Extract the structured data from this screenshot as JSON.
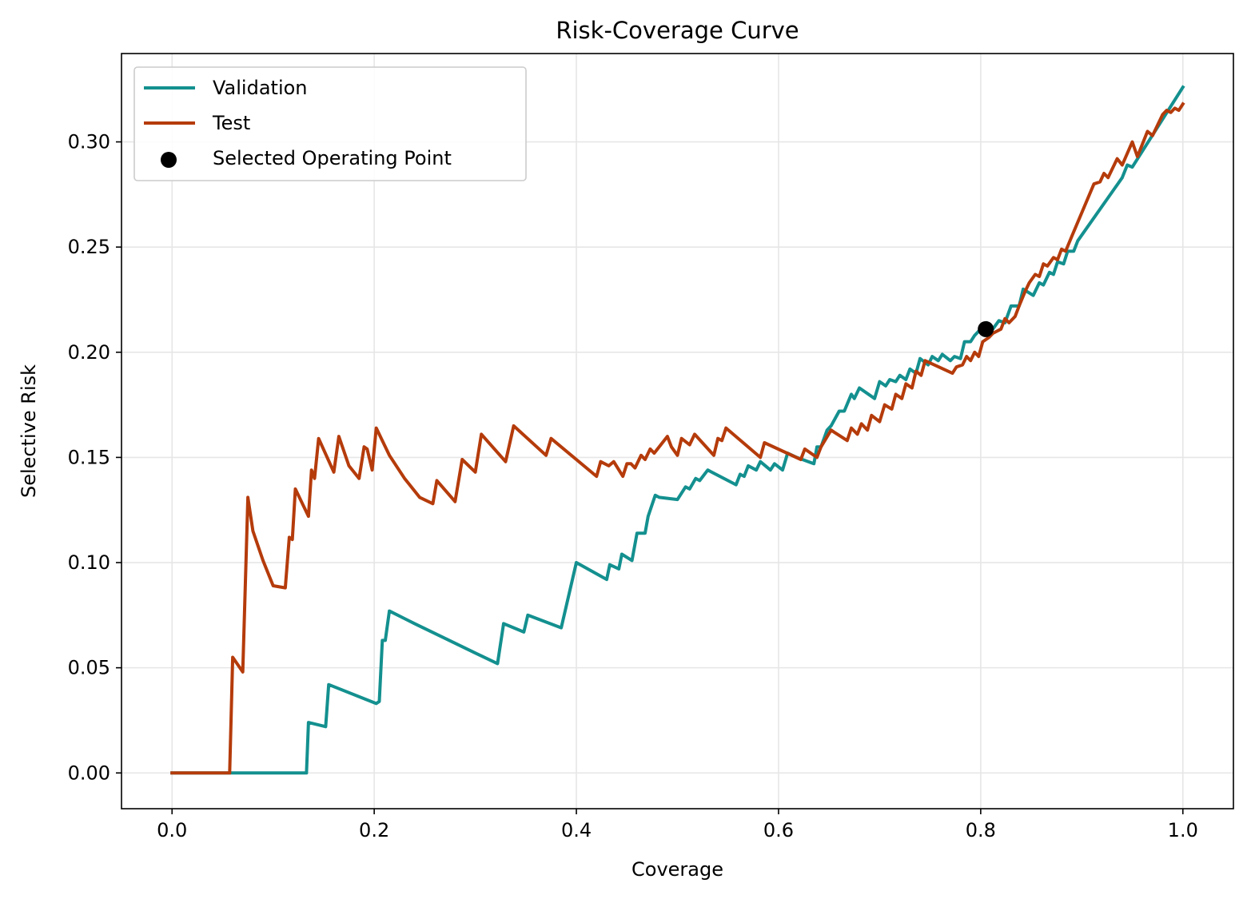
{
  "chart_data": {
    "type": "line",
    "title": "Risk-Coverage Curve",
    "xlabel": "Coverage",
    "ylabel": "Selective Risk",
    "xlim": [
      -0.05,
      1.05
    ],
    "ylim": [
      -0.017,
      0.342
    ],
    "xticks": [
      0.0,
      0.2,
      0.4,
      0.6,
      0.8,
      1.0
    ],
    "xtick_labels": [
      "0.0",
      "0.2",
      "0.4",
      "0.6",
      "0.8",
      "1.0"
    ],
    "yticks": [
      0.0,
      0.05,
      0.1,
      0.15,
      0.2,
      0.25,
      0.3
    ],
    "ytick_labels": [
      "0.00",
      "0.05",
      "0.10",
      "0.15",
      "0.20",
      "0.25",
      "0.30"
    ],
    "grid": true,
    "legend_position": "top-left",
    "series": [
      {
        "name": "Validation",
        "color": "#13908f",
        "x": [
          0.0,
          0.133,
          0.135,
          0.152,
          0.155,
          0.202,
          0.205,
          0.208,
          0.211,
          0.215,
          0.24,
          0.27,
          0.3,
          0.322,
          0.328,
          0.348,
          0.352,
          0.385,
          0.4,
          0.43,
          0.433,
          0.442,
          0.445,
          0.455,
          0.46,
          0.468,
          0.471,
          0.478,
          0.482,
          0.5,
          0.508,
          0.512,
          0.518,
          0.522,
          0.53,
          0.558,
          0.562,
          0.566,
          0.57,
          0.578,
          0.582,
          0.592,
          0.596,
          0.604,
          0.609,
          0.618,
          0.635,
          0.638,
          0.642,
          0.648,
          0.652,
          0.66,
          0.665,
          0.672,
          0.675,
          0.68,
          0.695,
          0.7,
          0.706,
          0.71,
          0.716,
          0.72,
          0.726,
          0.73,
          0.736,
          0.74,
          0.748,
          0.752,
          0.758,
          0.762,
          0.77,
          0.774,
          0.78,
          0.784,
          0.79,
          0.794,
          0.8,
          0.806,
          0.812,
          0.818,
          0.824,
          0.83,
          0.838,
          0.842,
          0.852,
          0.858,
          0.862,
          0.868,
          0.872,
          0.876,
          0.882,
          0.886,
          0.892,
          0.896,
          0.94,
          0.945,
          0.95,
          1.0
        ],
        "y": [
          0.0,
          0.0,
          0.024,
          0.022,
          0.042,
          0.033,
          0.034,
          0.063,
          0.063,
          0.077,
          0.071,
          0.064,
          0.057,
          0.052,
          0.071,
          0.067,
          0.075,
          0.069,
          0.1,
          0.092,
          0.099,
          0.097,
          0.104,
          0.101,
          0.114,
          0.114,
          0.122,
          0.132,
          0.131,
          0.13,
          0.136,
          0.135,
          0.14,
          0.139,
          0.144,
          0.137,
          0.142,
          0.141,
          0.146,
          0.144,
          0.148,
          0.144,
          0.147,
          0.144,
          0.152,
          0.15,
          0.147,
          0.155,
          0.155,
          0.163,
          0.165,
          0.172,
          0.172,
          0.18,
          0.178,
          0.183,
          0.178,
          0.186,
          0.184,
          0.187,
          0.186,
          0.189,
          0.187,
          0.192,
          0.19,
          0.197,
          0.194,
          0.198,
          0.196,
          0.199,
          0.196,
          0.198,
          0.197,
          0.205,
          0.205,
          0.208,
          0.211,
          0.214,
          0.211,
          0.215,
          0.214,
          0.222,
          0.222,
          0.23,
          0.227,
          0.233,
          0.232,
          0.238,
          0.237,
          0.243,
          0.242,
          0.248,
          0.248,
          0.253,
          0.283,
          0.289,
          0.288,
          0.326
        ]
      },
      {
        "name": "Test",
        "color": "#b53b0b",
        "x": [
          0.0,
          0.057,
          0.06,
          0.07,
          0.075,
          0.08,
          0.09,
          0.1,
          0.112,
          0.116,
          0.119,
          0.122,
          0.135,
          0.138,
          0.141,
          0.145,
          0.16,
          0.165,
          0.175,
          0.185,
          0.19,
          0.193,
          0.198,
          0.202,
          0.215,
          0.23,
          0.245,
          0.258,
          0.262,
          0.28,
          0.287,
          0.3,
          0.306,
          0.33,
          0.338,
          0.37,
          0.375,
          0.42,
          0.424,
          0.432,
          0.437,
          0.446,
          0.45,
          0.454,
          0.458,
          0.464,
          0.468,
          0.473,
          0.477,
          0.49,
          0.494,
          0.5,
          0.504,
          0.512,
          0.517,
          0.536,
          0.54,
          0.544,
          0.548,
          0.582,
          0.586,
          0.622,
          0.626,
          0.638,
          0.642,
          0.652,
          0.655,
          0.668,
          0.672,
          0.678,
          0.682,
          0.688,
          0.692,
          0.7,
          0.705,
          0.712,
          0.716,
          0.722,
          0.726,
          0.732,
          0.736,
          0.741,
          0.745,
          0.772,
          0.776,
          0.782,
          0.786,
          0.79,
          0.794,
          0.798,
          0.802,
          0.808,
          0.812,
          0.82,
          0.824,
          0.828,
          0.834,
          0.838,
          0.844,
          0.848,
          0.854,
          0.858,
          0.862,
          0.866,
          0.872,
          0.876,
          0.88,
          0.884,
          0.89,
          0.912,
          0.918,
          0.922,
          0.926,
          0.935,
          0.94,
          0.95,
          0.955,
          0.965,
          0.97,
          0.98,
          0.984,
          0.988,
          0.992,
          0.996,
          1.0
        ],
        "y": [
          0.0,
          0.0,
          0.055,
          0.048,
          0.131,
          0.115,
          0.101,
          0.089,
          0.088,
          0.112,
          0.111,
          0.135,
          0.122,
          0.144,
          0.14,
          0.159,
          0.143,
          0.16,
          0.146,
          0.14,
          0.155,
          0.154,
          0.144,
          0.164,
          0.151,
          0.14,
          0.131,
          0.128,
          0.139,
          0.129,
          0.149,
          0.143,
          0.161,
          0.148,
          0.165,
          0.151,
          0.159,
          0.141,
          0.148,
          0.146,
          0.148,
          0.141,
          0.147,
          0.147,
          0.145,
          0.151,
          0.149,
          0.154,
          0.152,
          0.16,
          0.155,
          0.151,
          0.159,
          0.156,
          0.161,
          0.151,
          0.159,
          0.158,
          0.164,
          0.15,
          0.157,
          0.149,
          0.154,
          0.15,
          0.155,
          0.163,
          0.162,
          0.158,
          0.164,
          0.161,
          0.166,
          0.163,
          0.17,
          0.167,
          0.175,
          0.173,
          0.18,
          0.178,
          0.185,
          0.183,
          0.191,
          0.189,
          0.196,
          0.19,
          0.193,
          0.194,
          0.198,
          0.196,
          0.2,
          0.198,
          0.205,
          0.207,
          0.209,
          0.211,
          0.216,
          0.214,
          0.217,
          0.222,
          0.229,
          0.233,
          0.237,
          0.236,
          0.242,
          0.241,
          0.245,
          0.244,
          0.249,
          0.248,
          0.255,
          0.28,
          0.281,
          0.285,
          0.283,
          0.292,
          0.289,
          0.3,
          0.293,
          0.305,
          0.303,
          0.313,
          0.315,
          0.314,
          0.316,
          0.315,
          0.318
        ]
      }
    ],
    "points": [
      {
        "name": "Selected Operating Point",
        "color": "#000000",
        "x": 0.805,
        "y": 0.211
      }
    ]
  }
}
